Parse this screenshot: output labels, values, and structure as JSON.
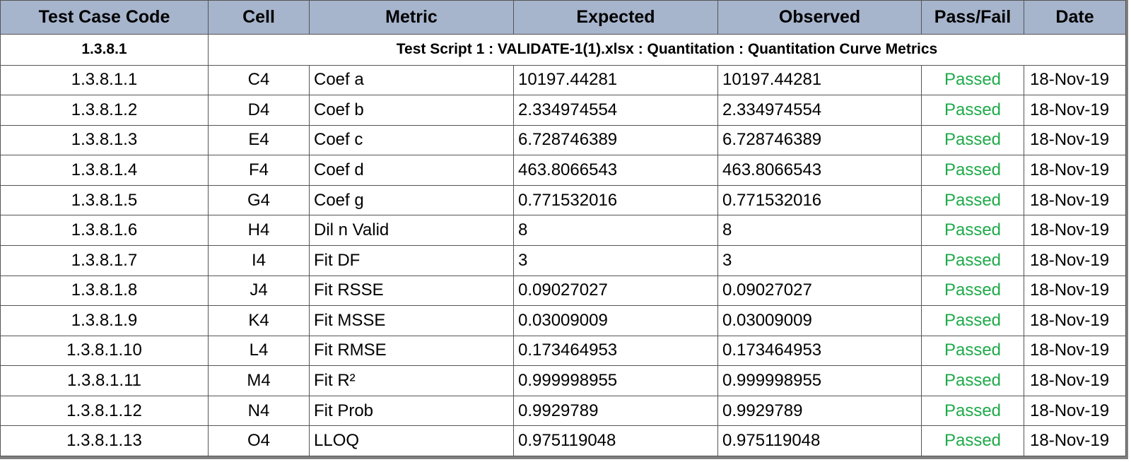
{
  "columns": [
    "Test Case Code",
    "Cell",
    "Metric",
    "Expected",
    "Observed",
    "Pass/Fail",
    "Date"
  ],
  "section": {
    "code": "1.3.8.1",
    "title": "Test Script 1 : VALIDATE-1(1).xlsx : Quantitation : Quantitation Curve Metrics"
  },
  "pass_color": "#1faa4a",
  "header_color": "#a6b4cc",
  "rows": [
    {
      "code": "1.3.8.1.1",
      "cell": "C4",
      "metric": "Coef a",
      "expected": "10197.44281",
      "observed": "10197.44281",
      "status": "Passed",
      "date": "18-Nov-19"
    },
    {
      "code": "1.3.8.1.2",
      "cell": "D4",
      "metric": "Coef b",
      "expected": "2.334974554",
      "observed": "2.334974554",
      "status": "Passed",
      "date": "18-Nov-19"
    },
    {
      "code": "1.3.8.1.3",
      "cell": "E4",
      "metric": "Coef c",
      "expected": "6.728746389",
      "observed": "6.728746389",
      "status": "Passed",
      "date": "18-Nov-19"
    },
    {
      "code": "1.3.8.1.4",
      "cell": "F4",
      "metric": "Coef d",
      "expected": "463.8066543",
      "observed": "463.8066543",
      "status": "Passed",
      "date": "18-Nov-19"
    },
    {
      "code": "1.3.8.1.5",
      "cell": "G4",
      "metric": "Coef g",
      "expected": "0.771532016",
      "observed": "0.771532016",
      "status": "Passed",
      "date": "18-Nov-19"
    },
    {
      "code": "1.3.8.1.6",
      "cell": "H4",
      "metric": "Dil n Valid",
      "expected": "8",
      "observed": "8",
      "status": "Passed",
      "date": "18-Nov-19"
    },
    {
      "code": "1.3.8.1.7",
      "cell": "I4",
      "metric": "Fit DF",
      "expected": "3",
      "observed": "3",
      "status": "Passed",
      "date": "18-Nov-19"
    },
    {
      "code": "1.3.8.1.8",
      "cell": "J4",
      "metric": "Fit RSSE",
      "expected": "0.09027027",
      "observed": "0.09027027",
      "status": "Passed",
      "date": "18-Nov-19"
    },
    {
      "code": "1.3.8.1.9",
      "cell": "K4",
      "metric": "Fit MSSE",
      "expected": "0.03009009",
      "observed": "0.03009009",
      "status": "Passed",
      "date": "18-Nov-19"
    },
    {
      "code": "1.3.8.1.10",
      "cell": "L4",
      "metric": "Fit RMSE",
      "expected": "0.173464953",
      "observed": "0.173464953",
      "status": "Passed",
      "date": "18-Nov-19"
    },
    {
      "code": "1.3.8.1.11",
      "cell": "M4",
      "metric": "Fit R²",
      "expected": "0.999998955",
      "observed": "0.999998955",
      "status": "Passed",
      "date": "18-Nov-19"
    },
    {
      "code": "1.3.8.1.12",
      "cell": "N4",
      "metric": "Fit Prob",
      "expected": "0.9929789",
      "observed": "0.9929789",
      "status": "Passed",
      "date": "18-Nov-19"
    },
    {
      "code": "1.3.8.1.13",
      "cell": "O4",
      "metric": "LLOQ",
      "expected": "0.975119048",
      "observed": "0.975119048",
      "status": "Passed",
      "date": "18-Nov-19"
    }
  ]
}
